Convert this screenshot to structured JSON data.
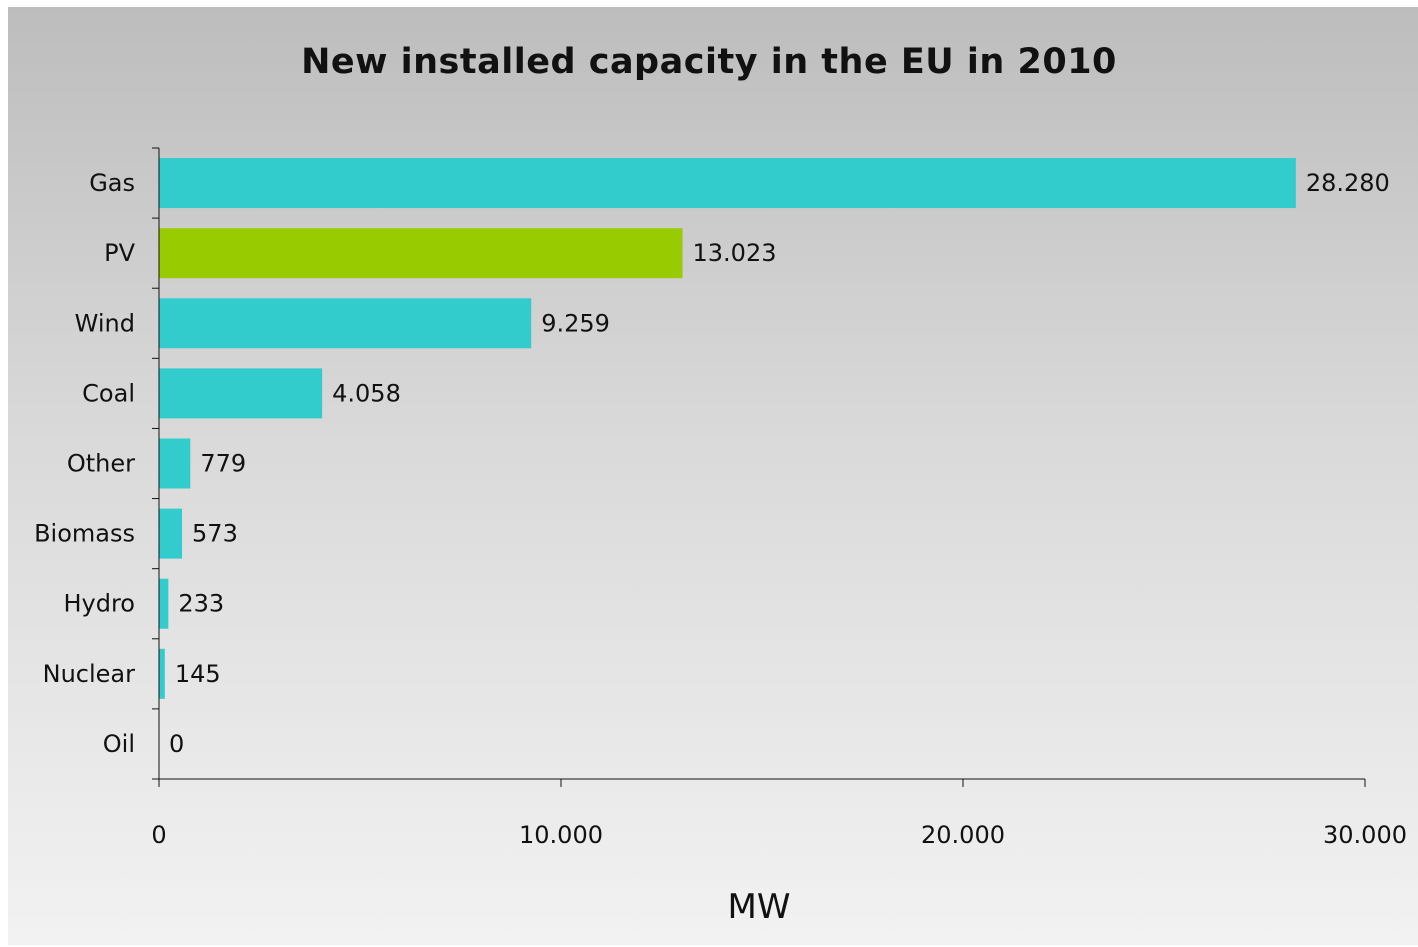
{
  "chart_data": {
    "type": "bar",
    "orientation": "horizontal",
    "title": "New installed capacity in the EU in 2010",
    "xlabel": "MW",
    "ylabel": "",
    "categories": [
      "Gas",
      "PV",
      "Wind",
      "Coal",
      "Other",
      "Biomass",
      "Hydro",
      "Nuclear",
      "Oil"
    ],
    "values": [
      28280,
      13023,
      9259,
      4058,
      779,
      573,
      233,
      145,
      0
    ],
    "value_labels": [
      "28.280",
      "13.023",
      "9.259",
      "4.058",
      "779",
      "573",
      "233",
      "145",
      "0"
    ],
    "xlim": [
      0,
      30000
    ],
    "xticks": [
      0,
      10000,
      20000,
      30000
    ],
    "xtick_labels": [
      "0",
      "10.000",
      "20.000",
      "30.000"
    ],
    "bar_colors": [
      "#33cccc",
      "#99cc00",
      "#33cccc",
      "#33cccc",
      "#33cccc",
      "#33cccc",
      "#33cccc",
      "#33cccc",
      "#33cccc"
    ],
    "grid": false,
    "legend": "none"
  },
  "colors": {
    "axis": "#111111",
    "background_top": "#bdbdbd",
    "background_bottom": "#f2f2f2"
  }
}
